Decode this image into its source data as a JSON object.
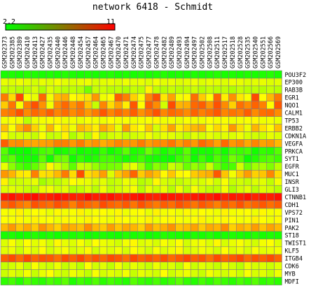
{
  "chart_data": {
    "type": "heatmap",
    "title": "network 6418 - Schmidt",
    "scale": {
      "min": 2.2,
      "max": 11,
      "min_label": "2.2",
      "max_label": "11",
      "low_color": "#00ff00",
      "high_color": "#ff0000"
    },
    "columns": [
      "GSM202373",
      "GSM202385",
      "GSM202389",
      "GSM202410",
      "GSM202413",
      "GSM202427",
      "GSM202435",
      "GSM202440",
      "GSM202446",
      "GSM202448",
      "GSM202454",
      "GSM202457",
      "GSM202464",
      "GSM202465",
      "GSM202467",
      "GSM202470",
      "GSM202471",
      "GSM202474",
      "GSM202475",
      "GSM202477",
      "GSM202478",
      "GSM202482",
      "GSM202489",
      "GSM202493",
      "GSM202494",
      "GSM202497",
      "GSM202502",
      "GSM202508",
      "GSM202511",
      "GSM202517",
      "GSM202518",
      "GSM202528",
      "GSM202535",
      "GSM202540",
      "GSM202551",
      "GSM202566",
      "GSM202569"
    ],
    "rows": [
      "POU3F2",
      "EP300",
      "RAB3B",
      "EGR1",
      "NQO1",
      "CALM1",
      "TP53",
      "ERBB2",
      "CDKN1A",
      "VEGFA",
      "PRKCA",
      "SYT1",
      "EGFR",
      "MUC1",
      "INSR",
      "GLI3",
      "CTNNB1",
      "CDH1",
      "VPS72",
      "PIN1",
      "PAK2",
      "ST18",
      "TWIST1",
      "KLF5",
      "ITGB4",
      "CDK6",
      "MYB",
      "MDFI"
    ],
    "values": [
      [
        2.6,
        2.7,
        2.6,
        2.8,
        2.7,
        2.6,
        2.7,
        2.6,
        2.8,
        2.7,
        2.6,
        2.7,
        2.6,
        2.7,
        2.8,
        2.6,
        2.7,
        2.6,
        2.7,
        2.6,
        2.7,
        2.8,
        2.6,
        2.7,
        2.6,
        2.7,
        2.6,
        2.7,
        2.8,
        2.6,
        2.7,
        2.6,
        2.7,
        2.6,
        2.7,
        2.8,
        2.6
      ],
      [
        6.2,
        6.0,
        6.3,
        6.1,
        5.8,
        6.2,
        6.0,
        6.4,
        6.1,
        6.0,
        6.2,
        6.3,
        5.9,
        6.1,
        6.2,
        6.0,
        6.3,
        6.1,
        6.2,
        6.0,
        6.4,
        6.1,
        6.2,
        6.0,
        6.1,
        6.3,
        6.0,
        6.2,
        6.1,
        6.0,
        6.3,
        6.2,
        6.0,
        6.1,
        6.2,
        6.0,
        6.1
      ],
      [
        5.5,
        5.6,
        5.3,
        5.4,
        5.9,
        5.2,
        6.0,
        5.6,
        5.4,
        5.5,
        5.3,
        4.2,
        5.6,
        5.7,
        5.4,
        5.5,
        5.2,
        5.6,
        5.4,
        6.8,
        5.5,
        5.3,
        5.6,
        5.4,
        5.5,
        5.7,
        5.3,
        5.6,
        5.4,
        5.5,
        5.2,
        5.6,
        5.4,
        5.5,
        5.3,
        5.6,
        5.4
      ],
      [
        8.9,
        7.2,
        9.8,
        6.5,
        6.2,
        9.2,
        6.4,
        7.8,
        8.0,
        6.6,
        6.9,
        7.1,
        8.4,
        6.3,
        6.6,
        9.4,
        8.8,
        7.4,
        6.5,
        8.7,
        9.6,
        7.0,
        8.2,
        6.4,
        6.7,
        9.1,
        7.5,
        6.6,
        9.3,
        6.9,
        8.5,
        7.0,
        6.5,
        9.7,
        6.6,
        7.8,
        8.9
      ],
      [
        7.5,
        9.0,
        6.5,
        8.8,
        9.6,
        8.5,
        6.4,
        8.6,
        9.2,
        8.4,
        9.0,
        7.6,
        5.6,
        8.7,
        7.2,
        8.2,
        6.9,
        9.5,
        6.6,
        9.4,
        8.6,
        5.8,
        9.7,
        7.9,
        8.0,
        9.2,
        9.4,
        8.4,
        9.6,
        8.6,
        7.4,
        9.1,
        8.6,
        9.3,
        8.8,
        6.6,
        9.5
      ],
      [
        8.8,
        9.0,
        9.6,
        8.6,
        9.2,
        8.9,
        9.4,
        8.7,
        9.1,
        8.6,
        9.0,
        8.4,
        8.9,
        9.5,
        8.7,
        9.2,
        8.8,
        9.4,
        8.5,
        9.0,
        9.6,
        8.7,
        9.2,
        9.0,
        8.6,
        9.3,
        8.8,
        9.1,
        9.5,
        8.7,
        9.0,
        8.8,
        9.4,
        8.6,
        9.1,
        9.2,
        8.6
      ],
      [
        6.4,
        6.5,
        6.4,
        5.4,
        6.3,
        6.4,
        6.5,
        6.7,
        6.3,
        6.4,
        6.2,
        6.5,
        6.4,
        6.3,
        6.6,
        6.4,
        6.5,
        6.3,
        6.4,
        6.5,
        6.7,
        6.3,
        6.4,
        6.2,
        6.5,
        6.4,
        6.3,
        6.6,
        6.4,
        6.5,
        6.3,
        6.4,
        6.5,
        6.7,
        6.3,
        6.4,
        6.2
      ],
      [
        7.7,
        6.5,
        7.9,
        8.6,
        7.4,
        6.3,
        7.9,
        6.6,
        7.2,
        6.3,
        7.8,
        7.4,
        6.9,
        8.1,
        7.5,
        6.2,
        8.3,
        7.0,
        6.6,
        7.6,
        5.9,
        7.1,
        8.2,
        6.9,
        7.4,
        7.8,
        8.0,
        6.5,
        7.3,
        6.8,
        8.4,
        7.2,
        6.3,
        7.9,
        7.1,
        6.6,
        7.7
      ],
      [
        6.7,
        5.8,
        5.9,
        5.9,
        5.6,
        6.5,
        5.6,
        5.7,
        6.8,
        5.2,
        5.9,
        5.3,
        6.7,
        5.3,
        5.8,
        6.0,
        5.6,
        5.8,
        6.0,
        6.4,
        5.9,
        6.2,
        6.1,
        5.9,
        5.5,
        6.1,
        5.8,
        6.2,
        5.9,
        6.1,
        6.0,
        6.3,
        5.9,
        5.8,
        5.7,
        6.2,
        6.0
      ],
      [
        9.4,
        8.5,
        8.6,
        8.2,
        8.1,
        8.2,
        8.3,
        8.8,
        8.8,
        8.4,
        8.9,
        8.2,
        8.5,
        8.0,
        8.3,
        8.7,
        8.4,
        8.4,
        8.9,
        8.3,
        8.6,
        8.6,
        9.0,
        8.3,
        8.8,
        8.4,
        9.2,
        8.8,
        8.2,
        9.2,
        8.4,
        8.7,
        8.1,
        8.7,
        8.2,
        8.4,
        7.8
      ],
      [
        3.7,
        2.4,
        2.5,
        2.4,
        2.8,
        3.4,
        3.6,
        2.5,
        2.7,
        3.1,
        2.5,
        2.7,
        2.5,
        3.2,
        2.5,
        2.9,
        3.8,
        2.7,
        2.9,
        4.1,
        3.2,
        2.6,
        3.1,
        2.8,
        3.8,
        2.5,
        2.6,
        2.6,
        3.2,
        2.5,
        3.4,
        3.2,
        3.4,
        2.5,
        3.1,
        2.9,
        3.7
      ],
      [
        3.5,
        3.8,
        2.6,
        2.6,
        2.5,
        3.8,
        2.5,
        3.9,
        4.2,
        2.5,
        3.1,
        2.6,
        2.8,
        3.4,
        3.4,
        3.0,
        2.6,
        2.8,
        3.3,
        2.7,
        2.6,
        2.5,
        2.4,
        3.2,
        3.7,
        2.4,
        3.3,
        2.6,
        3.6,
        2.9,
        4.2,
        3.6,
        2.4,
        2.8,
        3.5,
        3.7,
        3.3
      ],
      [
        6.2,
        4.6,
        3.6,
        3.2,
        3.9,
        4.9,
        6.7,
        5.8,
        5.1,
        3.8,
        5.6,
        5.5,
        4.8,
        4.1,
        4.2,
        4.3,
        5.7,
        6.2,
        5.0,
        3.4,
        4.6,
        4.0,
        5.7,
        5.2,
        4.0,
        4.8,
        4.3,
        5.7,
        4.1,
        3.2,
        3.5,
        5.8,
        4.1,
        5.0,
        5.1,
        4.4,
        5.4
      ],
      [
        8.4,
        7.9,
        7.0,
        6.9,
        8.8,
        7.1,
        7.2,
        7.8,
        8.9,
        7.2,
        9.7,
        7.2,
        7.5,
        8.3,
        6.0,
        7.6,
        8.2,
        9.3,
        7.5,
        8.2,
        7.7,
        6.7,
        7.6,
        6.7,
        6.6,
        7.5,
        7.8,
        8.0,
        9.5,
        7.6,
        6.4,
        7.5,
        8.3,
        7.4,
        7.6,
        8.7,
        7.2
      ],
      [
        6.8,
        5.6,
        5.7,
        5.9,
        6.2,
        5.0,
        5.5,
        5.4,
        5.9,
        6.6,
        6.3,
        6.2,
        5.9,
        6.1,
        5.5,
        5.7,
        6.3,
        6.1,
        5.3,
        5.6,
        6.7,
        5.9,
        5.7,
        5.5,
        5.8,
        5.9,
        5.9,
        6.3,
        5.7,
        6.5,
        5.6,
        5.8,
        5.6,
        6.0,
        6.1,
        5.5,
        6.4
      ],
      [
        6.0,
        6.1,
        5.9,
        5.6,
        5.4,
        6.2,
        6.4,
        5.8,
        6.1,
        5.3,
        5.5,
        6.0,
        5.4,
        6.3,
        5.5,
        5.8,
        6.1,
        6.5,
        5.3,
        6.2,
        5.7,
        6.2,
        5.3,
        6.3,
        5.4,
        6.5,
        5.8,
        5.5,
        5.5,
        6.4,
        5.2,
        5.8,
        6.1,
        5.4,
        6.0,
        5.8,
        5.4
      ],
      [
        10.5,
        10.7,
        10.4,
        10.6,
        10.8,
        10.4,
        10.5,
        10.7,
        10.6,
        10.5,
        10.4,
        10.8,
        10.5,
        10.6,
        10.7,
        10.4,
        10.5,
        10.6,
        10.8,
        10.5,
        10.4,
        10.7,
        10.6,
        10.5,
        10.4,
        10.6,
        10.7,
        10.5,
        10.8,
        10.4,
        10.6,
        10.5,
        10.7,
        10.4,
        10.6,
        10.5,
        10.7
      ],
      [
        9.2,
        9.5,
        9.0,
        8.7,
        9.6,
        9.3,
        9.1,
        9.6,
        9.4,
        8.8,
        9.5,
        9.2,
        9.0,
        9.7,
        9.3,
        9.1,
        9.5,
        9.0,
        9.6,
        9.2,
        8.9,
        9.4,
        9.1,
        9.6,
        9.3,
        9.0,
        9.5,
        9.2,
        8.8,
        9.4,
        9.1,
        9.6,
        9.0,
        9.3,
        9.5,
        9.1,
        9.4
      ],
      [
        6.5,
        6.4,
        6.8,
        6.3,
        6.6,
        6.5,
        6.2,
        6.7,
        6.4,
        6.5,
        6.8,
        6.3,
        6.5,
        6.6,
        6.4,
        6.7,
        6.3,
        6.5,
        6.6,
        6.2,
        6.8,
        6.4,
        6.5,
        6.3,
        6.7,
        6.4,
        6.6,
        6.5,
        6.3,
        6.8,
        6.4,
        6.5,
        6.6,
        6.3,
        6.7,
        6.4,
        6.5
      ],
      [
        6.6,
        6.5,
        6.7,
        6.4,
        6.8,
        6.5,
        6.6,
        6.3,
        6.7,
        6.5,
        6.4,
        6.8,
        6.6,
        6.5,
        6.3,
        6.7,
        6.6,
        6.4,
        6.5,
        6.8,
        6.3,
        6.6,
        6.7,
        6.5,
        6.4,
        6.6,
        6.8,
        6.3,
        6.5,
        6.7,
        6.6,
        6.4,
        6.5,
        6.8,
        6.6,
        6.3,
        6.7
      ],
      [
        7.8,
        8.4,
        7.6,
        8.1,
        7.5,
        8.5,
        7.9,
        7.4,
        8.2,
        8.0,
        7.7,
        8.6,
        7.8,
        7.5,
        8.3,
        7.6,
        8.1,
        7.9,
        7.4,
        8.4,
        7.7,
        8.0,
        8.5,
        7.6,
        7.8,
        8.2,
        7.5,
        8.1,
        7.9,
        8.6,
        7.4,
        8.0,
        7.7,
        8.3,
        7.6,
        8.2,
        7.8
      ],
      [
        2.6,
        2.7,
        2.5,
        2.6,
        2.8,
        2.6,
        2.7,
        2.5,
        2.6,
        2.7,
        2.8,
        2.5,
        2.6,
        2.7,
        2.6,
        2.5,
        2.8,
        2.6,
        2.7,
        2.5,
        2.6,
        2.8,
        2.7,
        2.6,
        2.5,
        2.7,
        2.6,
        2.8,
        2.5,
        2.6,
        2.7,
        2.6,
        2.5,
        2.8,
        2.6,
        2.7,
        2.6
      ],
      [
        6.0,
        6.5,
        5.9,
        6.6,
        6.1,
        6.4,
        5.8,
        6.7,
        6.2,
        6.0,
        6.5,
        5.9,
        6.6,
        6.3,
        6.1,
        5.8,
        6.4,
        6.7,
        6.0,
        6.2,
        5.9,
        6.5,
        6.1,
        6.6,
        5.8,
        6.3,
        6.4,
        6.0,
        6.7,
        5.9,
        6.2,
        6.5,
        6.1,
        5.8,
        6.4,
        6.6,
        6.0
      ],
      [
        6.1,
        6.3,
        5.7,
        6.4,
        6.0,
        6.6,
        5.8,
        6.2,
        6.5,
        5.9,
        6.1,
        6.7,
        5.8,
        6.3,
        6.0,
        6.4,
        5.9,
        6.6,
        6.2,
        5.8,
        6.5,
        6.0,
        6.3,
        6.7,
        5.9,
        6.1,
        6.4,
        6.2,
        5.8,
        6.6,
        6.0,
        6.3,
        5.9,
        6.5,
        6.1,
        6.2,
        6.4
      ],
      [
        9.4,
        9.7,
        9.2,
        9.8,
        9.3,
        9.6,
        9.5,
        9.1,
        9.7,
        9.4,
        9.8,
        9.2,
        9.6,
        9.3,
        9.7,
        9.5,
        9.1,
        9.8,
        9.4,
        9.6,
        9.3,
        9.7,
        9.2,
        9.5,
        9.8,
        9.4,
        9.6,
        9.1,
        9.7,
        9.3,
        9.5,
        9.8,
        9.2,
        9.6,
        9.4,
        9.7,
        9.3
      ],
      [
        5.6,
        5.8,
        6.2,
        5.5,
        6.5,
        5.9,
        5.7,
        6.3,
        5.6,
        6.0,
        5.4,
        6.6,
        5.8,
        6.1,
        5.5,
        6.4,
        5.7,
        6.2,
        5.9,
        5.6,
        6.3,
        5.8,
        6.0,
        5.5,
        6.5,
        5.7,
        6.1,
        5.9,
        5.6,
        6.2,
        5.8,
        5.4,
        6.3,
        5.9,
        6.0,
        5.7,
        6.1
      ],
      [
        5.7,
        6.1,
        5.8,
        6.4,
        5.6,
        6.2,
        6.6,
        5.9,
        5.7,
        6.3,
        6.0,
        5.5,
        6.5,
        5.8,
        6.1,
        5.9,
        6.4,
        5.6,
        6.2,
        6.0,
        5.8,
        6.6,
        5.7,
        6.1,
        6.3,
        5.9,
        5.6,
        6.4,
        6.0,
        5.8,
        6.2,
        5.7,
        6.5,
        5.9,
        6.1,
        5.6,
        6.3
      ],
      [
        3.0,
        3.4,
        2.8,
        3.6,
        3.1,
        2.9,
        3.5,
        3.2,
        3.8,
        2.7,
        3.3,
        3.0,
        3.6,
        2.9,
        3.4,
        3.1,
        2.8,
        3.7,
        3.2,
        3.0,
        3.5,
        2.9,
        3.3,
        3.8,
        3.1,
        2.8,
        3.4,
        3.0,
        3.6,
        3.2,
        2.9,
        3.5,
        3.1,
        3.7,
        3.0,
        3.3,
        2.9
      ]
    ]
  }
}
